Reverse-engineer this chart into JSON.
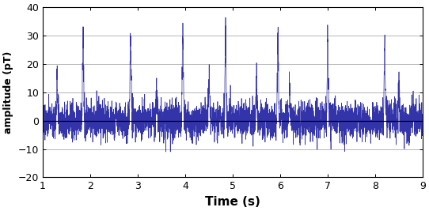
{
  "title": "",
  "xlabel": "Time (s)",
  "ylabel": "amplitude (pT)",
  "xlim": [
    1,
    9
  ],
  "ylim": [
    -20,
    40
  ],
  "yticks": [
    -20,
    -10,
    0,
    10,
    20,
    30,
    40
  ],
  "xticks": [
    1,
    2,
    3,
    4,
    5,
    6,
    7,
    8,
    9
  ],
  "line_color": "#3333AA",
  "line_width": 0.5,
  "background_color": "#ffffff",
  "grid_color": "#aaaaaa",
  "noise_std": 3.2,
  "heartbeat_times": [
    1.3,
    1.85,
    2.85,
    3.4,
    3.95,
    4.5,
    4.85,
    5.5,
    5.95,
    6.2,
    7.0,
    8.2,
    8.5
  ],
  "heartbeat_amplitudes": [
    14,
    28,
    28,
    10,
    31,
    15,
    29,
    13,
    27,
    11,
    30,
    26,
    12
  ],
  "sample_rate": 500,
  "seed": 77,
  "xlabel_fontsize": 11,
  "ylabel_fontsize": 9,
  "tick_labelsize": 9
}
